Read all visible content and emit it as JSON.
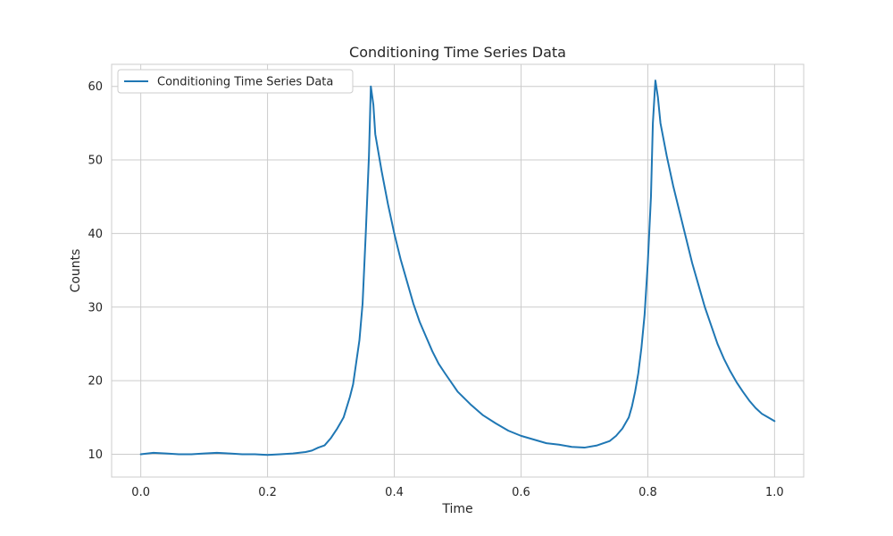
{
  "chart_data": {
    "type": "line",
    "title": "Conditioning Time Series Data",
    "xlabel": "Time",
    "ylabel": "Counts",
    "xlim": [
      -0.046,
      1.046
    ],
    "ylim": [
      6.9,
      63.0
    ],
    "xticks": [
      0.0,
      0.2,
      0.4,
      0.6,
      0.8,
      1.0
    ],
    "xtick_labels": [
      "0.0",
      "0.2",
      "0.4",
      "0.6",
      "0.8",
      "1.0"
    ],
    "yticks": [
      10,
      20,
      30,
      40,
      50,
      60
    ],
    "ytick_labels": [
      "10",
      "20",
      "30",
      "40",
      "50",
      "60"
    ],
    "grid": true,
    "legend": {
      "position": "top-left",
      "entries": [
        "Conditioning Time Series Data"
      ]
    },
    "series": [
      {
        "name": "Conditioning Time Series Data",
        "color": "#1f77b4",
        "x": [
          0.0,
          0.02,
          0.04,
          0.06,
          0.08,
          0.1,
          0.12,
          0.14,
          0.16,
          0.18,
          0.2,
          0.22,
          0.24,
          0.26,
          0.27,
          0.28,
          0.29,
          0.3,
          0.31,
          0.32,
          0.33,
          0.335,
          0.34,
          0.345,
          0.35,
          0.355,
          0.36,
          0.363,
          0.367,
          0.37,
          0.375,
          0.38,
          0.39,
          0.4,
          0.41,
          0.42,
          0.43,
          0.44,
          0.45,
          0.46,
          0.47,
          0.48,
          0.5,
          0.52,
          0.54,
          0.56,
          0.58,
          0.6,
          0.62,
          0.64,
          0.66,
          0.68,
          0.7,
          0.72,
          0.74,
          0.75,
          0.76,
          0.77,
          0.775,
          0.78,
          0.785,
          0.79,
          0.795,
          0.8,
          0.805,
          0.808,
          0.812,
          0.816,
          0.82,
          0.83,
          0.84,
          0.85,
          0.86,
          0.87,
          0.88,
          0.89,
          0.9,
          0.91,
          0.92,
          0.93,
          0.94,
          0.95,
          0.96,
          0.97,
          0.98,
          0.99,
          1.0
        ],
        "values": [
          10.0,
          10.2,
          10.1,
          10.0,
          10.0,
          10.1,
          10.2,
          10.1,
          10.0,
          10.0,
          9.9,
          10.0,
          10.1,
          10.3,
          10.5,
          10.9,
          11.2,
          12.2,
          13.5,
          15.0,
          17.8,
          19.5,
          22.5,
          25.5,
          30.5,
          40.0,
          50.5,
          60.0,
          57.5,
          53.5,
          51.0,
          48.5,
          44.0,
          40.0,
          36.5,
          33.5,
          30.5,
          28.0,
          26.0,
          24.0,
          22.3,
          21.0,
          18.5,
          16.8,
          15.3,
          14.2,
          13.2,
          12.5,
          12.0,
          11.5,
          11.3,
          11.0,
          10.9,
          11.2,
          11.8,
          12.5,
          13.5,
          15.0,
          16.5,
          18.5,
          21.0,
          24.5,
          29.0,
          36.0,
          45.0,
          55.0,
          60.8,
          58.5,
          55.0,
          50.5,
          46.5,
          43.0,
          39.5,
          36.0,
          33.0,
          30.0,
          27.5,
          25.0,
          23.0,
          21.3,
          19.8,
          18.5,
          17.3,
          16.3,
          15.5,
          15.0,
          14.5
        ]
      }
    ]
  }
}
